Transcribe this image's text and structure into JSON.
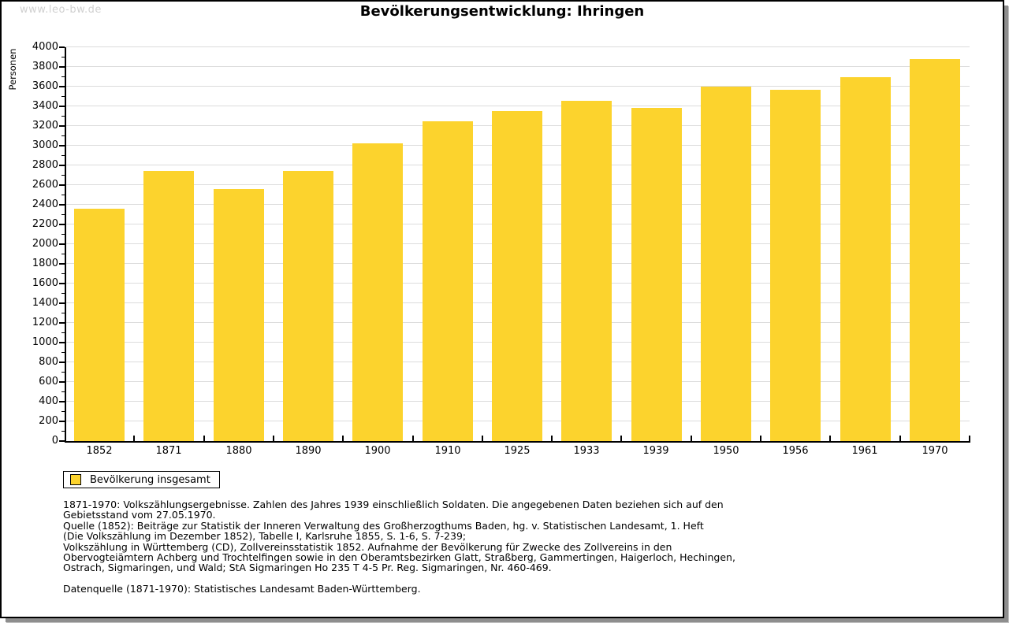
{
  "watermark": "www.leo-bw.de",
  "title": "Bevölkerungsentwicklung: Ihringen",
  "chart_data": {
    "type": "bar",
    "title": "Bevölkerungsentwicklung: Ihringen",
    "ylabel": "Personen",
    "xlabel": "",
    "categories": [
      "1852",
      "1871",
      "1880",
      "1890",
      "1900",
      "1910",
      "1925",
      "1933",
      "1939",
      "1950",
      "1956",
      "1961",
      "1970"
    ],
    "values": [
      2370,
      2755,
      2570,
      2750,
      3030,
      3255,
      3360,
      3460,
      3390,
      3605,
      3575,
      3700,
      3885
    ],
    "ylim": [
      0,
      4000
    ],
    "ytick_step": 200,
    "ytick_minor_step": 100,
    "grid": true,
    "bar_color": "#fcd32d",
    "grid_color": "#dcdcdc",
    "legend_position": "bottom-left"
  },
  "legend": {
    "label": "Bevölkerung insgesamt",
    "swatch_color": "#fcd32d"
  },
  "footer": {
    "lines": [
      "1871-1970: Volkszählungsergebnisse. Zahlen des Jahres 1939 einschließlich Soldaten. Die angegebenen Daten beziehen sich auf den",
      "Gebietsstand vom 27.05.1970.",
      "Quelle (1852): Beiträge zur Statistik der Inneren Verwaltung des Großherzogthums Baden, hg. v. Statistischen Landesamt, 1. Heft",
      "(Die Volkszählung im Dezember 1852), Tabelle I, Karlsruhe 1855, S. 1-6, S. 7-239;",
      "Volkszählung in Württemberg (CD), Zollvereinsstatistik 1852. Aufnahme der Bevölkerung für Zwecke des Zollvereins in den",
      "Obervogteiämtern Achberg und Trochtelfingen sowie in den Oberamtsbezirken Glatt, Straßberg, Gammertingen, Haigerloch, Hechingen,",
      "Ostrach, Sigmaringen, und Wald; StA Sigmaringen Ho 235 T 4-5 Pr. Reg. Sigmaringen, Nr. 460-469."
    ],
    "datenquelle": "Datenquelle (1871-1970): Statistisches Landesamt Baden-Württemberg."
  }
}
